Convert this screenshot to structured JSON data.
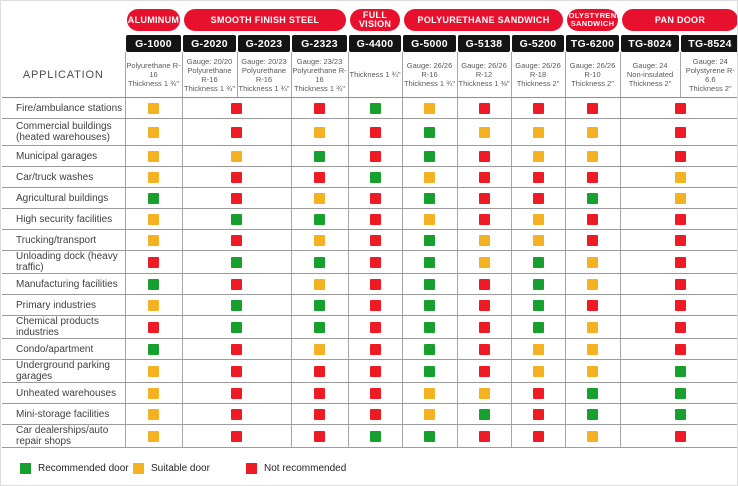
{
  "colors": {
    "group_pill_red": "#e8112d",
    "model_band_black": "#141414",
    "grid_line": "#9b9b9b",
    "spec_text": "#58595b"
  },
  "chart_data": {
    "type": "table",
    "application_header": "APPLICATION",
    "column_groups": [
      {
        "label": "ALUMINUM",
        "span": [
          0,
          0
        ],
        "two_line": false
      },
      {
        "label": "SMOOTH FINISH STEEL",
        "span": [
          1,
          3
        ],
        "two_line": false
      },
      {
        "label": "FULL VISION",
        "span": [
          4,
          4
        ],
        "two_line": false
      },
      {
        "label": "POLYURETHANE SANDWICH",
        "span": [
          5,
          7
        ],
        "two_line": false
      },
      {
        "label": "POLYSTYRENE\nSANDWICH",
        "span": [
          8,
          8
        ],
        "two_line": true
      },
      {
        "label": "PAN DOOR",
        "span": [
          9,
          10
        ],
        "two_line": false
      }
    ],
    "models": [
      {
        "name": "G-1000",
        "spec": [
          "Polyurethane R-16",
          "Thickness 1 ¾\""
        ]
      },
      {
        "name": "G-2020",
        "spec": [
          "Gauge: 20/20",
          "Polyurethane R-16",
          "Thickness 1 ¾\""
        ]
      },
      {
        "name": "G-2023",
        "spec": [
          "Gauge: 20/23",
          "Polyurethane R-16",
          "Thickness 1 ¾\""
        ]
      },
      {
        "name": "G-2323",
        "spec": [
          "Gauge: 23/23",
          "Polyurethane R-16",
          "Thickness 1 ¾\""
        ]
      },
      {
        "name": "G-4400",
        "spec": [
          "Thickness 1 ¾\""
        ]
      },
      {
        "name": "G-5000",
        "spec": [
          "Gauge: 26/26",
          "R-16",
          "Thickness 1 ¾\""
        ]
      },
      {
        "name": "G-5138",
        "spec": [
          "Gauge: 26/26",
          "R-12",
          "Thickness 1 ⅜\""
        ]
      },
      {
        "name": "G-5200",
        "spec": [
          "Gauge: 26/26",
          "R-18",
          "Thickness 2\""
        ]
      },
      {
        "name": "TG-6200",
        "spec": [
          "Gauge: 26/26",
          "R-10",
          "Thickness 2\""
        ]
      },
      {
        "name": "TG-8024",
        "spec": [
          "Gauge: 24",
          "Non-insulated",
          "Thickness 2\""
        ]
      },
      {
        "name": "TG-8524",
        "spec": [
          "Gauge: 24",
          "Polystyrene R-6.6",
          "Thickness 2\""
        ]
      }
    ],
    "body_col_spans": [
      1,
      2,
      1,
      1,
      1,
      1,
      1,
      1,
      2
    ],
    "body_col_models": [
      "G-1000",
      "G-2020 / G-2023",
      "G-2323",
      "G-4400",
      "G-5000",
      "G-5138",
      "G-5200",
      "TG-6200",
      "TG-8024 / TG-8524"
    ],
    "rating_colors": {
      "G": "#17a02d",
      "Y": "#f4b223",
      "R": "#ee1b24"
    },
    "rows": [
      {
        "application": "Fire/ambulance stations",
        "ratings": [
          "Y",
          "R",
          "R",
          "G",
          "Y",
          "R",
          "R",
          "R",
          "R"
        ]
      },
      {
        "application": "Commercial buildings\n(heated warehouses)",
        "ratings": [
          "Y",
          "R",
          "Y",
          "R",
          "G",
          "Y",
          "Y",
          "Y",
          "R"
        ]
      },
      {
        "application": "Municipal garages",
        "ratings": [
          "Y",
          "Y",
          "G",
          "R",
          "G",
          "R",
          "Y",
          "Y",
          "R"
        ]
      },
      {
        "application": "Car/truck washes",
        "ratings": [
          "Y",
          "R",
          "R",
          "G",
          "Y",
          "R",
          "R",
          "R",
          "Y"
        ]
      },
      {
        "application": "Agricultural buildings",
        "ratings": [
          "G",
          "R",
          "Y",
          "R",
          "G",
          "R",
          "R",
          "G",
          "Y"
        ]
      },
      {
        "application": "High security facilities",
        "ratings": [
          "Y",
          "G",
          "G",
          "R",
          "Y",
          "R",
          "Y",
          "R",
          "R"
        ]
      },
      {
        "application": "Trucking/transport",
        "ratings": [
          "Y",
          "R",
          "Y",
          "R",
          "G",
          "Y",
          "Y",
          "R",
          "R"
        ]
      },
      {
        "application": "Unloading dock (heavy traffic)",
        "ratings": [
          "R",
          "G",
          "G",
          "R",
          "G",
          "Y",
          "G",
          "Y",
          "R"
        ]
      },
      {
        "application": "Manufacturing facilities",
        "ratings": [
          "G",
          "R",
          "Y",
          "R",
          "G",
          "R",
          "G",
          "Y",
          "R"
        ]
      },
      {
        "application": "Primary industries",
        "ratings": [
          "Y",
          "G",
          "G",
          "R",
          "G",
          "R",
          "G",
          "R",
          "R"
        ]
      },
      {
        "application": "Chemical products industries",
        "ratings": [
          "R",
          "G",
          "G",
          "R",
          "G",
          "R",
          "G",
          "Y",
          "R"
        ]
      },
      {
        "application": "Condo/apartment",
        "ratings": [
          "G",
          "R",
          "Y",
          "R",
          "G",
          "R",
          "Y",
          "Y",
          "R"
        ]
      },
      {
        "application": "Underground parking garages",
        "ratings": [
          "Y",
          "R",
          "R",
          "R",
          "G",
          "R",
          "Y",
          "Y",
          "G"
        ]
      },
      {
        "application": "Unheated warehouses",
        "ratings": [
          "Y",
          "R",
          "R",
          "R",
          "Y",
          "Y",
          "R",
          "G",
          "G"
        ]
      },
      {
        "application": "Mini-storage facilities",
        "ratings": [
          "Y",
          "R",
          "R",
          "R",
          "Y",
          "G",
          "R",
          "G",
          "G"
        ]
      },
      {
        "application": "Car dealerships/auto repair shops",
        "ratings": [
          "Y",
          "R",
          "R",
          "G",
          "G",
          "R",
          "R",
          "Y",
          "R"
        ]
      }
    ],
    "legend": [
      {
        "code": "G",
        "label": "Recommended door"
      },
      {
        "code": "Y",
        "label": "Suitable door"
      },
      {
        "code": "R",
        "label": "Not recommended"
      }
    ]
  }
}
